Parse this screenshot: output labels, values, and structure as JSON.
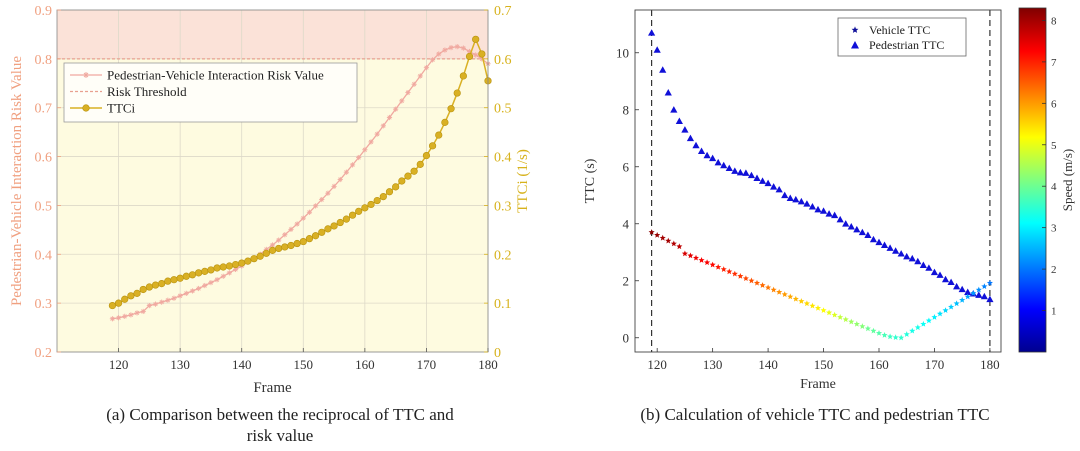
{
  "chart_data": [
    {
      "type": "line",
      "caption": "(a) Comparison between the reciprocal of TTC and risk value",
      "caption_lines": [
        "(a) Comparison between the reciprocal of TTC and",
        "risk value"
      ],
      "xlabel": "Frame",
      "ylabel_left": "Pedestrian-Vehicle Interaction Risk Value",
      "ylabel_right": "TTCi (1/s)",
      "xlim": [
        110,
        180
      ],
      "ylim_left": [
        0.2,
        0.9
      ],
      "ylim_right": [
        0,
        0.7
      ],
      "xticks": [
        120,
        130,
        140,
        150,
        160,
        170,
        180
      ],
      "yticks_left": [
        "0.2",
        "0.3",
        "0.4",
        "0.5",
        "0.6",
        "0.7",
        "0.8",
        "0.9"
      ],
      "yticks_right": [
        "0",
        "0.1",
        "0.2",
        "0.3",
        "0.4",
        "0.5",
        "0.6",
        "0.7"
      ],
      "risk_threshold": 0.8,
      "legend": [
        "Pedestrian-Vehicle Interaction Risk Value",
        "Risk Threshold",
        "TTCi"
      ],
      "legend_position": "top-left",
      "colors": {
        "risk": "#f0a9a0",
        "threshold": "#e8a090",
        "ttci": "#d9b024",
        "ttci_edge": "#b8920e",
        "above_fill": "#fbe2d8",
        "below_fill": "#fefbe0",
        "left_axis": "#f0a080",
        "right_axis": "#d7b21c"
      },
      "series": [
        {
          "name": "Pedestrian-Vehicle Interaction Risk Value",
          "axis": "left",
          "x": [
            119,
            120,
            121,
            122,
            123,
            124,
            125,
            126,
            127,
            128,
            129,
            130,
            131,
            132,
            133,
            134,
            135,
            136,
            137,
            138,
            139,
            140,
            141,
            142,
            143,
            144,
            145,
            146,
            147,
            148,
            149,
            150,
            151,
            152,
            153,
            154,
            155,
            156,
            157,
            158,
            159,
            160,
            161,
            162,
            163,
            164,
            165,
            166,
            167,
            168,
            169,
            170,
            171,
            172,
            173,
            174,
            175,
            176,
            177,
            178,
            179,
            180
          ],
          "y": [
            0.268,
            0.27,
            0.273,
            0.276,
            0.28,
            0.283,
            0.295,
            0.298,
            0.302,
            0.306,
            0.31,
            0.315,
            0.32,
            0.325,
            0.33,
            0.336,
            0.342,
            0.348,
            0.355,
            0.362,
            0.369,
            0.376,
            0.384,
            0.392,
            0.4,
            0.41,
            0.419,
            0.429,
            0.44,
            0.451,
            0.462,
            0.474,
            0.486,
            0.499,
            0.512,
            0.525,
            0.539,
            0.553,
            0.568,
            0.583,
            0.598,
            0.614,
            0.63,
            0.646,
            0.663,
            0.68,
            0.697,
            0.714,
            0.731,
            0.748,
            0.765,
            0.782,
            0.798,
            0.81,
            0.818,
            0.823,
            0.825,
            0.822,
            0.815,
            0.808,
            0.8,
            0.79
          ]
        },
        {
          "name": "TTCi",
          "axis": "right",
          "x": [
            119,
            120,
            121,
            122,
            123,
            124,
            125,
            126,
            127,
            128,
            129,
            130,
            131,
            132,
            133,
            134,
            135,
            136,
            137,
            138,
            139,
            140,
            141,
            142,
            143,
            144,
            145,
            146,
            147,
            148,
            149,
            150,
            151,
            152,
            153,
            154,
            155,
            156,
            157,
            158,
            159,
            160,
            161,
            162,
            163,
            164,
            165,
            166,
            167,
            168,
            169,
            170,
            171,
            172,
            173,
            174,
            175,
            176,
            177,
            178,
            179,
            180
          ],
          "y": [
            0.095,
            0.1,
            0.108,
            0.115,
            0.12,
            0.128,
            0.133,
            0.137,
            0.14,
            0.145,
            0.148,
            0.151,
            0.155,
            0.158,
            0.162,
            0.165,
            0.168,
            0.172,
            0.174,
            0.176,
            0.179,
            0.182,
            0.186,
            0.191,
            0.196,
            0.202,
            0.208,
            0.212,
            0.215,
            0.218,
            0.222,
            0.226,
            0.232,
            0.238,
            0.245,
            0.252,
            0.258,
            0.265,
            0.272,
            0.28,
            0.288,
            0.295,
            0.302,
            0.31,
            0.318,
            0.328,
            0.338,
            0.35,
            0.36,
            0.37,
            0.384,
            0.402,
            0.422,
            0.444,
            0.47,
            0.498,
            0.53,
            0.565,
            0.605,
            0.64,
            0.61,
            0.555
          ]
        }
      ]
    },
    {
      "type": "scatter",
      "caption": "(b) Calculation of vehicle TTC and pedestrian TTC",
      "xlabel": "Frame",
      "ylabel": "TTC (s)",
      "xlim": [
        116,
        182
      ],
      "ylim": [
        -0.5,
        11.5
      ],
      "xticks": [
        120,
        130,
        140,
        150,
        160,
        170,
        180
      ],
      "yticks": [
        "0",
        "2",
        "4",
        "6",
        "8",
        "10"
      ],
      "vlines": [
        119,
        180
      ],
      "legend": [
        "Vehicle TTC",
        "Pedestrian TTC"
      ],
      "legend_position": "top-right",
      "colorbar": {
        "label": "Speed (m/s)",
        "range": [
          0,
          8.3
        ],
        "ticks": [
          "1",
          "2",
          "3",
          "4",
          "5",
          "6",
          "7",
          "8"
        ]
      },
      "series": [
        {
          "name": "Pedestrian TTC",
          "marker": "triangle",
          "color": "#1010d8",
          "x": [
            119,
            120,
            121,
            122,
            123,
            124,
            125,
            126,
            127,
            128,
            129,
            130,
            131,
            132,
            133,
            134,
            135,
            136,
            137,
            138,
            139,
            140,
            141,
            142,
            143,
            144,
            145,
            146,
            147,
            148,
            149,
            150,
            151,
            152,
            153,
            154,
            155,
            156,
            157,
            158,
            159,
            160,
            161,
            162,
            163,
            164,
            165,
            166,
            167,
            168,
            169,
            170,
            171,
            172,
            173,
            174,
            175,
            176,
            177,
            178,
            179,
            180
          ],
          "y": [
            10.7,
            10.1,
            9.4,
            8.6,
            8.0,
            7.6,
            7.3,
            7.0,
            6.75,
            6.55,
            6.4,
            6.3,
            6.15,
            6.05,
            5.95,
            5.85,
            5.8,
            5.78,
            5.7,
            5.6,
            5.5,
            5.42,
            5.3,
            5.2,
            5.0,
            4.9,
            4.85,
            4.78,
            4.7,
            4.6,
            4.5,
            4.45,
            4.35,
            4.3,
            4.15,
            4.0,
            3.9,
            3.8,
            3.7,
            3.6,
            3.45,
            3.35,
            3.25,
            3.15,
            3.05,
            2.95,
            2.85,
            2.78,
            2.68,
            2.55,
            2.45,
            2.3,
            2.2,
            2.05,
            1.95,
            1.8,
            1.7,
            1.6,
            1.55,
            1.5,
            1.45,
            1.35
          ]
        },
        {
          "name": "Vehicle TTC",
          "marker": "star",
          "x": [
            119,
            120,
            121,
            122,
            123,
            124,
            125,
            126,
            127,
            128,
            129,
            130,
            131,
            132,
            133,
            134,
            135,
            136,
            137,
            138,
            139,
            140,
            141,
            142,
            143,
            144,
            145,
            146,
            147,
            148,
            149,
            150,
            151,
            152,
            153,
            154,
            155,
            156,
            157,
            158,
            159,
            160,
            161,
            162,
            163,
            164,
            165,
            166,
            167,
            168,
            169,
            170,
            171,
            172,
            173,
            174,
            175,
            176,
            177,
            178,
            179,
            180
          ],
          "y": [
            3.7,
            3.6,
            3.5,
            3.4,
            3.3,
            3.2,
            2.95,
            2.88,
            2.8,
            2.72,
            2.64,
            2.56,
            2.48,
            2.4,
            2.32,
            2.24,
            2.16,
            2.08,
            2.0,
            1.92,
            1.84,
            1.76,
            1.68,
            1.6,
            1.52,
            1.44,
            1.36,
            1.28,
            1.2,
            1.12,
            1.04,
            0.96,
            0.88,
            0.8,
            0.72,
            0.64,
            0.56,
            0.48,
            0.4,
            0.32,
            0.24,
            0.16,
            0.09,
            0.04,
            0.01,
            0.0,
            0.12,
            0.24,
            0.36,
            0.48,
            0.6,
            0.72,
            0.84,
            0.96,
            1.08,
            1.2,
            1.32,
            1.44,
            1.56,
            1.68,
            1.8,
            1.92
          ],
          "speed": [
            8.2,
            8.1,
            8.0,
            8.0,
            7.9,
            7.8,
            7.6,
            7.5,
            7.4,
            7.3,
            7.3,
            7.2,
            7.1,
            7.0,
            7.0,
            6.9,
            6.8,
            6.7,
            6.6,
            6.5,
            6.4,
            6.3,
            6.2,
            6.1,
            6.0,
            5.9,
            5.8,
            5.6,
            5.5,
            5.4,
            5.3,
            5.2,
            5.0,
            4.9,
            4.7,
            4.6,
            4.4,
            4.3,
            4.2,
            4.0,
            3.9,
            3.8,
            3.7,
            3.6,
            3.5,
            3.5,
            3.4,
            3.3,
            3.3,
            3.2,
            3.1,
            3.0,
            2.9,
            2.8,
            2.7,
            2.6,
            2.5,
            2.4,
            2.3,
            2.2,
            2.1,
            2.0
          ]
        }
      ]
    }
  ]
}
